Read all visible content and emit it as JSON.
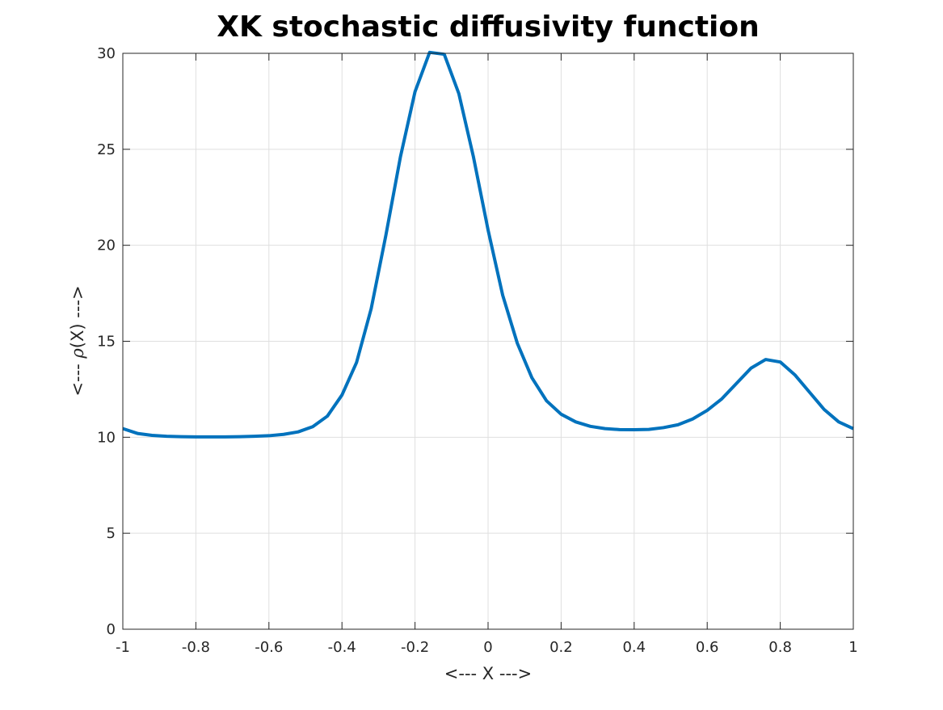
{
  "chart_data": {
    "type": "line",
    "title": "XK stochastic diffusivity function",
    "xlabel": "<--- X --->",
    "ylabel": {
      "prefix": "<---  ",
      "symbol": "ρ",
      "suffix": "(X)  --->"
    },
    "xlim": [
      -1,
      1
    ],
    "ylim": [
      0,
      30
    ],
    "grid": true,
    "box": true,
    "x_ticks": [
      -1,
      -0.8,
      -0.6,
      -0.4,
      -0.2,
      0,
      0.2,
      0.4,
      0.6,
      0.8,
      1
    ],
    "x_tick_labels": [
      "-1",
      "-0.8",
      "-0.6",
      "-0.4",
      "-0.2",
      "0",
      "0.2",
      "0.4",
      "0.6",
      "0.8",
      "1"
    ],
    "y_ticks": [
      0,
      5,
      10,
      15,
      20,
      25,
      30
    ],
    "y_tick_labels": [
      "0",
      "5",
      "10",
      "15",
      "20",
      "25",
      "30"
    ],
    "series": [
      {
        "color": "#0072bd",
        "x": [
          -1,
          -0.96,
          -0.92,
          -0.88,
          -0.84,
          -0.8,
          -0.76,
          -0.72,
          -0.68,
          -0.64,
          -0.6,
          -0.56,
          -0.52,
          -0.48,
          -0.44,
          -0.4,
          -0.36,
          -0.32,
          -0.28,
          -0.24,
          -0.2,
          -0.16,
          -0.12,
          -0.08,
          -0.04,
          0,
          0.04,
          0.08,
          0.12,
          0.16,
          0.2,
          0.24,
          0.28,
          0.32,
          0.36,
          0.4,
          0.44,
          0.48,
          0.52,
          0.56,
          0.6,
          0.64,
          0.68,
          0.72,
          0.76,
          0.8,
          0.84,
          0.88,
          0.92,
          0.96,
          1
        ],
        "y": [
          10.45,
          10.2,
          10.1,
          10.05,
          10.03,
          10.02,
          10.02,
          10.02,
          10.03,
          10.05,
          10.08,
          10.15,
          10.28,
          10.55,
          11.1,
          12.2,
          13.9,
          16.7,
          20.5,
          24.6,
          28.0,
          30.05,
          29.95,
          27.9,
          24.6,
          20.8,
          17.4,
          14.9,
          13.1,
          11.9,
          11.2,
          10.8,
          10.57,
          10.45,
          10.4,
          10.39,
          10.41,
          10.5,
          10.65,
          10.95,
          11.4,
          12.0,
          12.8,
          13.6,
          14.05,
          13.92,
          13.25,
          12.35,
          11.45,
          10.8,
          10.45
        ]
      }
    ]
  }
}
